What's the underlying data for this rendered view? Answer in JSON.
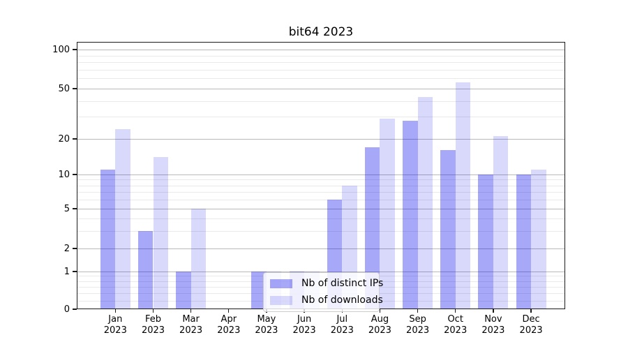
{
  "chart_data": {
    "type": "bar",
    "title": "bit64 2023",
    "categories": [
      "Jan 2023",
      "Feb 2023",
      "Mar 2023",
      "Apr 2023",
      "May 2023",
      "Jun 2023",
      "Jul 2023",
      "Aug 2023",
      "Sep 2023",
      "Oct 2023",
      "Nov 2023",
      "Dec 2023"
    ],
    "series": [
      {
        "name": "Nb of distinct IPs",
        "color": "rgba(0,0,235,0.34)",
        "values": [
          11,
          3,
          1,
          0,
          1,
          1,
          6,
          17,
          28,
          16,
          10,
          10
        ]
      },
      {
        "name": "Nb of downloads",
        "color": "rgba(0,0,235,0.15)",
        "values": [
          24,
          14,
          5,
          0,
          1,
          1,
          8,
          29,
          43,
          56,
          21,
          11
        ]
      }
    ],
    "yscale": "log-like (0 shown at baseline)",
    "y_ticks": [
      0,
      1,
      2,
      5,
      10,
      20,
      50,
      100
    ],
    "y_minor_ticks": [
      0.5,
      0.6,
      0.7,
      0.8,
      0.9,
      3,
      4,
      6,
      7,
      8,
      9,
      30,
      40,
      60,
      70,
      80,
      90
    ],
    "ylim": [
      0,
      115
    ],
    "grid": true,
    "legend_position": "lower center-left inside plot",
    "colors": {
      "bar_distinct_ips_hex": "#a9a9f6",
      "bar_downloads_hex": "#d9d9f8",
      "grid_major": "#b9b9b9",
      "grid_minor": "#e9e9e9",
      "axis": "#1a1a1a"
    }
  }
}
